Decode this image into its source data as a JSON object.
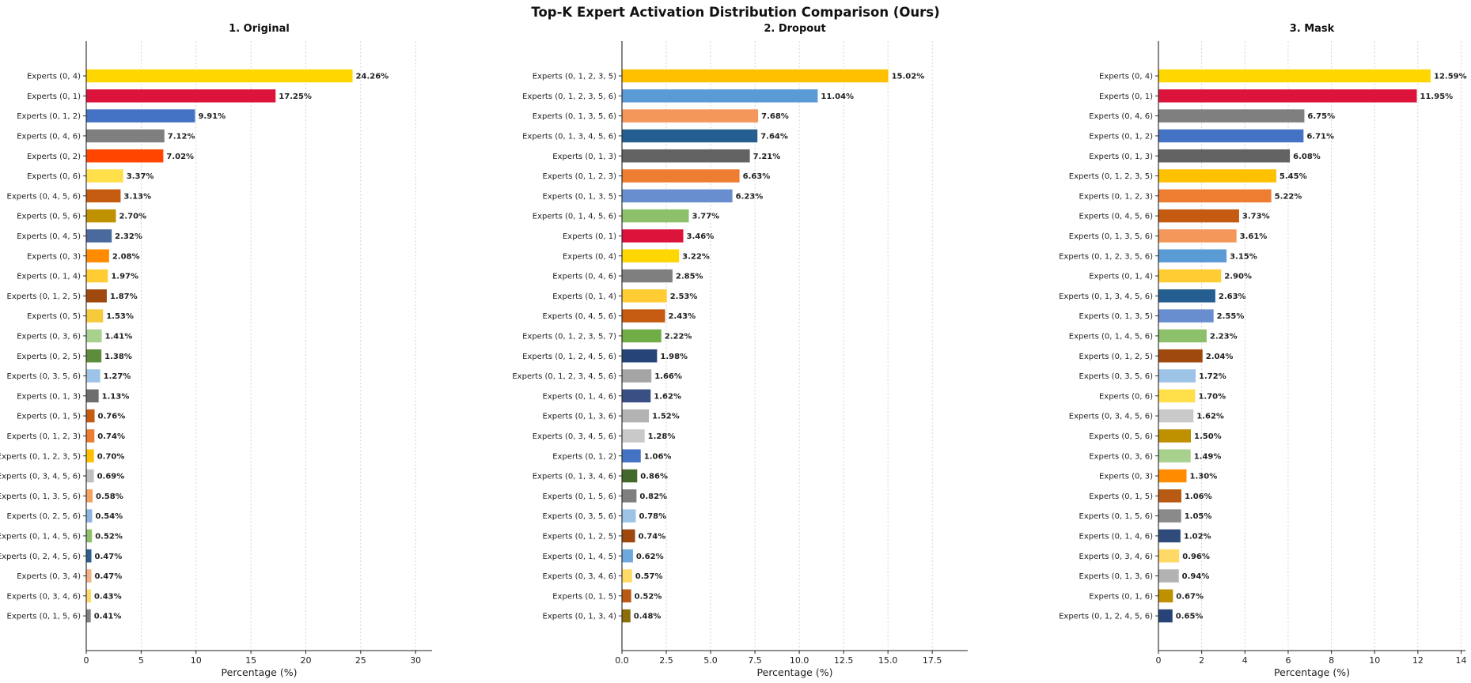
{
  "suptitle": "Top-K Expert Activation Distribution Comparison (Ours)",
  "chart_data": [
    {
      "type": "bar",
      "orientation": "horizontal",
      "title": "1. Original",
      "xlabel": "Percentage (%)",
      "ylabel": "",
      "xlim": [
        0,
        31.5
      ],
      "xticks": [
        0,
        5,
        10,
        15,
        20,
        25,
        30
      ],
      "xtick_labels": [
        "0",
        "5",
        "10",
        "15",
        "20",
        "25",
        "30"
      ],
      "grid": "x-dotted",
      "categories": [
        "Experts (0, 4)",
        "Experts (0, 1)",
        "Experts (0, 1, 2)",
        "Experts (0, 4, 6)",
        "Experts (0, 2)",
        "Experts (0, 6)",
        "Experts (0, 4, 5, 6)",
        "Experts (0, 5, 6)",
        "Experts (0, 4, 5)",
        "Experts (0, 3)",
        "Experts (0, 1, 4)",
        "Experts (0, 1, 2, 5)",
        "Experts (0, 5)",
        "Experts (0, 3, 6)",
        "Experts (0, 2, 5)",
        "Experts (0, 3, 5, 6)",
        "Experts (0, 1, 3)",
        "Experts (0, 1, 5)",
        "Experts (0, 1, 2, 3)",
        "Experts (0, 1, 2, 3, 5)",
        "Experts (0, 3, 4, 5, 6)",
        "Experts (0, 1, 3, 5, 6)",
        "Experts (0, 2, 5, 6)",
        "Experts (0, 1, 4, 5, 6)",
        "Experts (0, 2, 4, 5, 6)",
        "Experts (0, 3, 4)",
        "Experts (0, 3, 4, 6)",
        "Experts (0, 1, 5, 6)"
      ],
      "values": [
        24.26,
        17.25,
        9.91,
        7.12,
        7.02,
        3.37,
        3.13,
        2.7,
        2.32,
        2.08,
        1.97,
        1.87,
        1.53,
        1.41,
        1.38,
        1.27,
        1.13,
        0.76,
        0.74,
        0.7,
        0.69,
        0.58,
        0.54,
        0.52,
        0.47,
        0.47,
        0.43,
        0.41
      ],
      "value_labels": [
        "24.26%",
        "17.25%",
        "9.91%",
        "7.12%",
        "7.02%",
        "3.37%",
        "3.13%",
        "2.70%",
        "2.32%",
        "2.08%",
        "1.97%",
        "1.87%",
        "1.53%",
        "1.41%",
        "1.38%",
        "1.27%",
        "1.13%",
        "0.76%",
        "0.74%",
        "0.70%",
        "0.69%",
        "0.58%",
        "0.54%",
        "0.52%",
        "0.47%",
        "0.47%",
        "0.43%",
        "0.41%"
      ],
      "colors": [
        "#FFD700",
        "#DC143C",
        "#4472C4",
        "#7F7F7F",
        "#FF4500",
        "#FFE04B",
        "#C55A11",
        "#BF9000",
        "#4A6A9E",
        "#FF8C00",
        "#FFCD33",
        "#A0490F",
        "#F5CB3C",
        "#A9D18E",
        "#5E8C3A",
        "#9DC3E6",
        "#6E6E6E",
        "#C55A11",
        "#ED7D31",
        "#FFC000",
        "#BFBFBF",
        "#F4A460",
        "#8EB4E3",
        "#8DC06A",
        "#2E5E8E",
        "#F4B183",
        "#FFD966",
        "#808080"
      ]
    },
    {
      "type": "bar",
      "orientation": "horizontal",
      "title": "2. Dropout",
      "xlabel": "Percentage (%)",
      "ylabel": "",
      "xlim": [
        0,
        19.5
      ],
      "xticks": [
        0,
        2.5,
        5,
        7.5,
        10,
        12.5,
        15,
        17.5
      ],
      "xtick_labels": [
        "0.0",
        "2.5",
        "5.0",
        "7.5",
        "10.0",
        "12.5",
        "15.0",
        "17.5"
      ],
      "grid": "x-dotted",
      "categories": [
        "Experts (0, 1, 2, 3, 5)",
        "Experts (0, 1, 2, 3, 5, 6)",
        "Experts (0, 1, 3, 5, 6)",
        "Experts (0, 1, 3, 4, 5, 6)",
        "Experts (0, 1, 3)",
        "Experts (0, 1, 2, 3)",
        "Experts (0, 1, 3, 5)",
        "Experts (0, 1, 4, 5, 6)",
        "Experts (0, 1)",
        "Experts (0, 4)",
        "Experts (0, 4, 6)",
        "Experts (0, 1, 4)",
        "Experts (0, 4, 5, 6)",
        "Experts (0, 1, 2, 3, 5, 7)",
        "Experts (0, 1, 2, 4, 5, 6)",
        "Experts (0, 1, 2, 3, 4, 5, 6)",
        "Experts (0, 1, 4, 6)",
        "Experts (0, 1, 3, 6)",
        "Experts (0, 3, 4, 5, 6)",
        "Experts (0, 1, 2)",
        "Experts (0, 1, 3, 4, 6)",
        "Experts (0, 1, 5, 6)",
        "Experts (0, 3, 5, 6)",
        "Experts (0, 1, 2, 5)",
        "Experts (0, 1, 4, 5)",
        "Experts (0, 3, 4, 6)",
        "Experts (0, 1, 5)",
        "Experts (0, 1, 3, 4)"
      ],
      "values": [
        15.02,
        11.04,
        7.68,
        7.64,
        7.21,
        6.63,
        6.23,
        3.77,
        3.46,
        3.22,
        2.85,
        2.53,
        2.43,
        2.22,
        1.98,
        1.66,
        1.62,
        1.52,
        1.28,
        1.06,
        0.86,
        0.82,
        0.78,
        0.74,
        0.62,
        0.57,
        0.52,
        0.48
      ],
      "value_labels": [
        "15.02%",
        "11.04%",
        "7.68%",
        "7.64%",
        "7.21%",
        "6.63%",
        "6.23%",
        "3.77%",
        "3.46%",
        "3.22%",
        "2.85%",
        "2.53%",
        "2.43%",
        "2.22%",
        "1.98%",
        "1.66%",
        "1.62%",
        "1.52%",
        "1.28%",
        "1.06%",
        "0.86%",
        "0.82%",
        "0.78%",
        "0.74%",
        "0.62%",
        "0.57%",
        "0.52%",
        "0.48%"
      ],
      "colors": [
        "#FFC000",
        "#5B9BD5",
        "#F4975B",
        "#255E91",
        "#636363",
        "#ED7D31",
        "#698ED0",
        "#8DC06A",
        "#DC143C",
        "#FFD700",
        "#7F7F7F",
        "#FFCD33",
        "#C55A11",
        "#70AD47",
        "#264478",
        "#A5A5A5",
        "#3A5085",
        "#B3B3B3",
        "#C9C9C9",
        "#4472C4",
        "#43682B",
        "#7F7F7F",
        "#9DC3E6",
        "#9E480E",
        "#6FA8DC",
        "#FFD966",
        "#B85A13",
        "#8C6D0A"
      ]
    },
    {
      "type": "bar",
      "orientation": "horizontal",
      "title": "3. Mask",
      "xlabel": "Percentage (%)",
      "ylabel": "",
      "xlim": [
        0,
        14.2
      ],
      "xticks": [
        0,
        2,
        4,
        6,
        8,
        10,
        12,
        14
      ],
      "xtick_labels": [
        "0",
        "2",
        "4",
        "6",
        "8",
        "10",
        "12",
        "14"
      ],
      "grid": "x-dotted",
      "categories": [
        "Experts (0, 4)",
        "Experts (0, 1)",
        "Experts (0, 4, 6)",
        "Experts (0, 1, 2)",
        "Experts (0, 1, 3)",
        "Experts (0, 1, 2, 3, 5)",
        "Experts (0, 1, 2, 3)",
        "Experts (0, 4, 5, 6)",
        "Experts (0, 1, 3, 5, 6)",
        "Experts (0, 1, 2, 3, 5, 6)",
        "Experts (0, 1, 4)",
        "Experts (0, 1, 3, 4, 5, 6)",
        "Experts (0, 1, 3, 5)",
        "Experts (0, 1, 4, 5, 6)",
        "Experts (0, 1, 2, 5)",
        "Experts (0, 3, 5, 6)",
        "Experts (0, 6)",
        "Experts (0, 3, 4, 5, 6)",
        "Experts (0, 5, 6)",
        "Experts (0, 3, 6)",
        "Experts (0, 3)",
        "Experts (0, 1, 5)",
        "Experts (0, 1, 5, 6)",
        "Experts (0, 1, 4, 6)",
        "Experts (0, 3, 4, 6)",
        "Experts (0, 1, 3, 6)",
        "Experts (0, 1, 6)",
        "Experts (0, 1, 2, 4, 5, 6)"
      ],
      "values": [
        12.59,
        11.95,
        6.75,
        6.71,
        6.08,
        5.45,
        5.22,
        3.73,
        3.61,
        3.15,
        2.9,
        2.63,
        2.55,
        2.23,
        2.04,
        1.72,
        1.7,
        1.62,
        1.5,
        1.49,
        1.3,
        1.06,
        1.05,
        1.02,
        0.96,
        0.94,
        0.67,
        0.65
      ],
      "value_labels": [
        "12.59%",
        "11.95%",
        "6.75%",
        "6.71%",
        "6.08%",
        "5.45%",
        "5.22%",
        "3.73%",
        "3.61%",
        "3.15%",
        "2.90%",
        "2.63%",
        "2.55%",
        "2.23%",
        "2.04%",
        "1.72%",
        "1.70%",
        "1.62%",
        "1.50%",
        "1.49%",
        "1.30%",
        "1.06%",
        "1.05%",
        "1.02%",
        "0.96%",
        "0.94%",
        "0.67%",
        "0.65%"
      ],
      "colors": [
        "#FFD700",
        "#DC143C",
        "#7F7F7F",
        "#4472C4",
        "#636363",
        "#FFC000",
        "#ED7D31",
        "#C55A11",
        "#F4975B",
        "#5B9BD5",
        "#FFCD33",
        "#255E91",
        "#698ED0",
        "#8DC06A",
        "#A0490F",
        "#9DC3E6",
        "#FFE04B",
        "#C9C9C9",
        "#BF9000",
        "#A9D18E",
        "#FF8C00",
        "#B85A13",
        "#8A8A8A",
        "#2F4B7C",
        "#FFD966",
        "#B3B3B3",
        "#BF9000",
        "#264478"
      ]
    }
  ]
}
